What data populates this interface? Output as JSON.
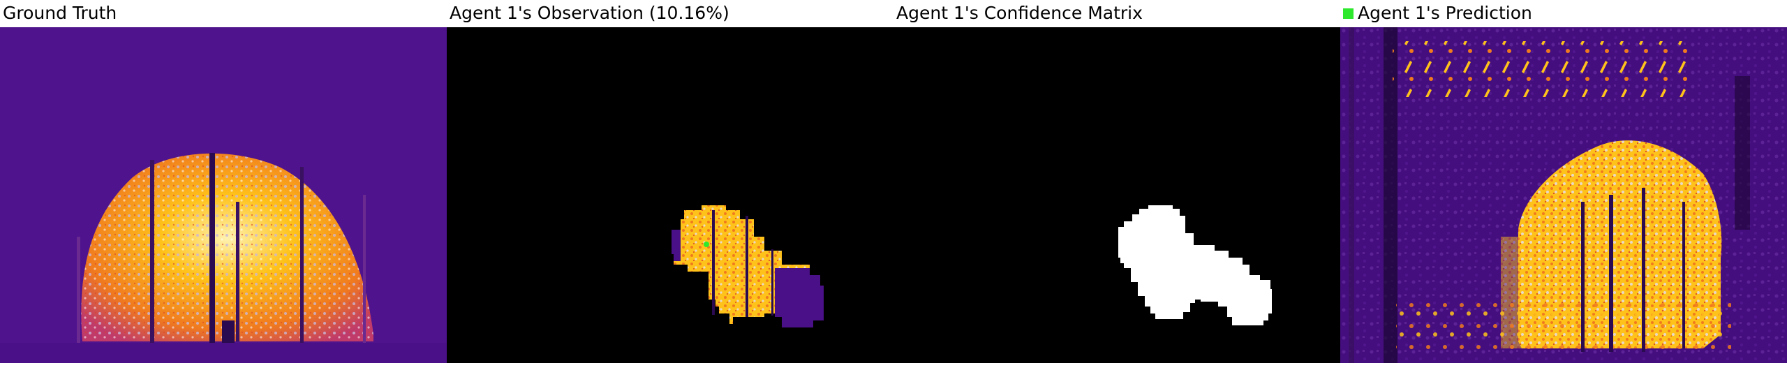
{
  "panels": [
    {
      "title": "Ground Truth"
    },
    {
      "title": "Agent 1's Observation (10.16%)"
    },
    {
      "title": "Agent 1's Confidence Matrix"
    },
    {
      "title": "Agent 1's Prediction"
    }
  ],
  "colors": {
    "background_purple": "#4a1088",
    "fire_yellow": "#ffc21a",
    "fire_orange": "#f07a1e",
    "fire_pale": "#e8d8c8",
    "marker_green": "#2ee82e",
    "confidence_white": "#ffffff",
    "black": "#000000"
  }
}
